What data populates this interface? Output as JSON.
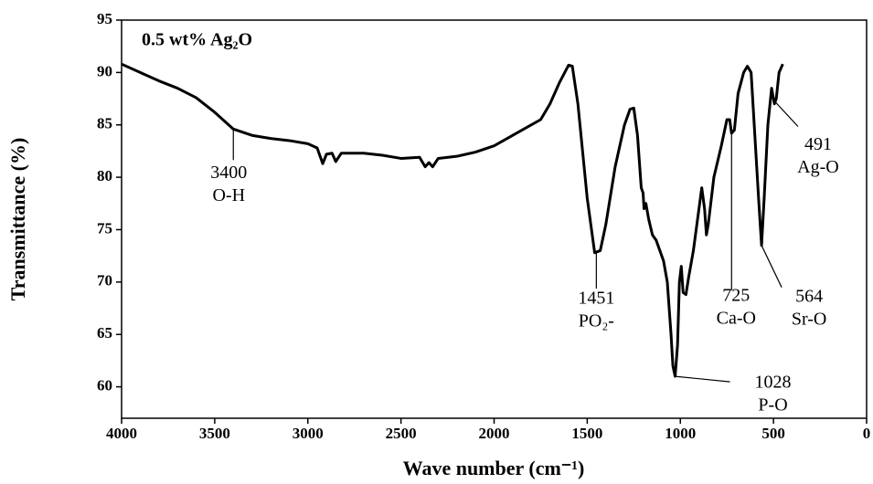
{
  "chart_data": {
    "type": "line",
    "title": "0.5 wt% Ag₂O",
    "x_label": "Wave number (cm⁻¹)",
    "y_label": "Transmittance (%)",
    "xlim": [
      4000,
      0
    ],
    "ylim": [
      57,
      95
    ],
    "xticks": [
      4000,
      3500,
      3000,
      2500,
      2000,
      1500,
      1000,
      500,
      0
    ],
    "yticks": [
      60,
      65,
      70,
      75,
      80,
      85,
      90,
      95
    ],
    "grid": false,
    "series": [
      {
        "color": "#000000",
        "x": [
          4000,
          3900,
          3800,
          3700,
          3600,
          3500,
          3400,
          3300,
          3200,
          3100,
          3000,
          2950,
          2920,
          2900,
          2870,
          2850,
          2820,
          2700,
          2600,
          2500,
          2400,
          2370,
          2350,
          2330,
          2300,
          2200,
          2100,
          2000,
          1900,
          1800,
          1750,
          1700,
          1650,
          1600,
          1580,
          1550,
          1500,
          1460,
          1430,
          1400,
          1350,
          1300,
          1270,
          1250,
          1230,
          1210,
          1200,
          1195,
          1185,
          1170,
          1150,
          1130,
          1110,
          1090,
          1070,
          1050,
          1040,
          1028,
          1015,
          1005,
          995,
          985,
          970,
          955,
          930,
          900,
          885,
          870,
          860,
          850,
          820,
          780,
          750,
          735,
          725,
          710,
          690,
          660,
          640,
          620,
          600,
          580,
          564,
          550,
          530,
          510,
          495,
          485,
          470,
          450
        ],
        "values": [
          90.8,
          90.0,
          89.2,
          88.5,
          87.6,
          86.2,
          84.6,
          84.0,
          83.7,
          83.5,
          83.2,
          82.8,
          81.3,
          82.2,
          82.3,
          81.5,
          82.3,
          82.3,
          82.1,
          81.8,
          81.9,
          81.0,
          81.4,
          81.0,
          81.8,
          82.0,
          82.4,
          83.0,
          84.0,
          85.0,
          85.5,
          87.0,
          89.0,
          90.7,
          90.6,
          87.0,
          78.0,
          72.8,
          73.0,
          75.5,
          81.0,
          85.0,
          86.5,
          86.6,
          84.0,
          79.0,
          78.5,
          77.0,
          77.5,
          76.0,
          74.5,
          74.0,
          73.0,
          72.0,
          70.0,
          65.0,
          62.0,
          61.0,
          64.0,
          70.0,
          71.5,
          69.0,
          68.8,
          70.5,
          73.0,
          77.0,
          79.0,
          77.0,
          74.5,
          75.5,
          80.0,
          83.0,
          85.5,
          85.5,
          84.2,
          84.5,
          88.0,
          90.0,
          90.6,
          90.0,
          84.0,
          78.0,
          73.5,
          78.0,
          85.0,
          88.5,
          87.0,
          87.5,
          90.0,
          90.8
        ]
      }
    ],
    "annotations": [
      {
        "x": 3400,
        "label": "O-H"
      },
      {
        "x": 1451,
        "label": "PO₂-"
      },
      {
        "x": 1028,
        "label": "P-O"
      },
      {
        "x": 725,
        "label": "Ca-O"
      },
      {
        "x": 564,
        "label": "Sr-O"
      },
      {
        "x": 491,
        "label": "Ag-O"
      }
    ]
  }
}
